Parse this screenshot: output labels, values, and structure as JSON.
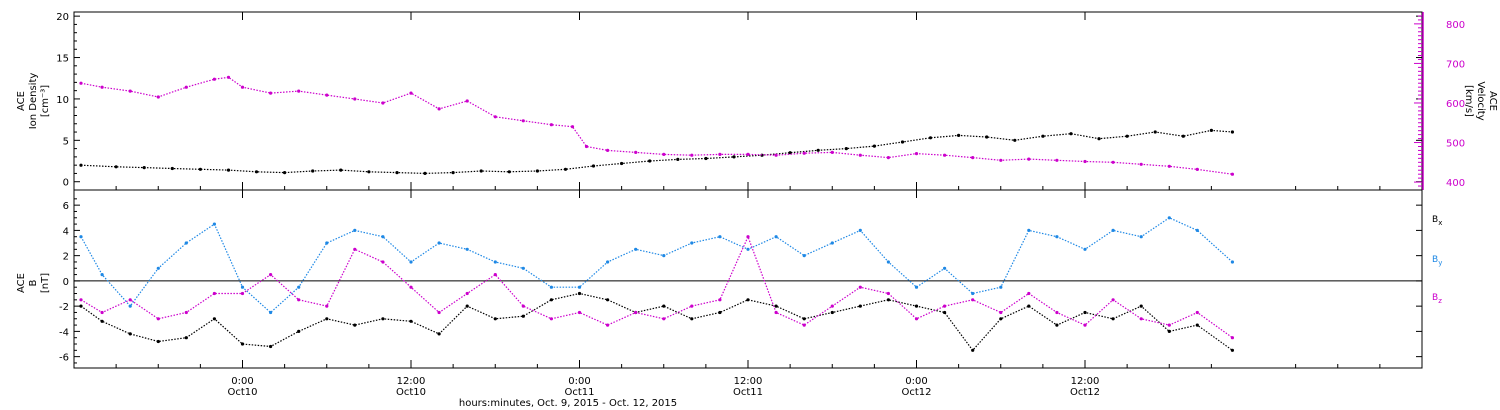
{
  "colors": {
    "axis": "#000000",
    "density": "#000000",
    "velocity": "#cc00cc",
    "bx": "#000000",
    "by": "#1e88e5",
    "bz": "#cc00cc"
  },
  "chart_data": [
    {
      "type": "scatter",
      "title": "",
      "xlabel": "hours:minutes, Oct. 9, 2015 - Oct. 12, 2015",
      "ylabel": [
        "ACE",
        "Ion Density",
        "[cm⁻³]"
      ],
      "y2label": [
        "ACE",
        "Velocity",
        "[km/s]"
      ],
      "xlim": [
        -12,
        84
      ],
      "ylim": [
        -1,
        20.5
      ],
      "y2lim": [
        380,
        830
      ],
      "yticks": [
        "0",
        "5",
        "10",
        "15",
        "20"
      ],
      "y2ticks": [
        "400",
        "500",
        "600",
        "700",
        "800"
      ],
      "grid": false,
      "series": [
        {
          "name": "",
          "axis": "left",
          "x": [
            -11.5,
            -9,
            -7,
            -5,
            -3,
            -1,
            1,
            3,
            5,
            7,
            9,
            11,
            13,
            15,
            17,
            19,
            21,
            23,
            25,
            27,
            29,
            31,
            33,
            35,
            37,
            39,
            41,
            43,
            45,
            47,
            49,
            51,
            53,
            55,
            57,
            59,
            61,
            63,
            65,
            67,
            69,
            70.5
          ],
          "y": [
            2.0,
            1.8,
            1.7,
            1.6,
            1.5,
            1.4,
            1.2,
            1.1,
            1.3,
            1.4,
            1.2,
            1.1,
            1.0,
            1.1,
            1.3,
            1.2,
            1.3,
            1.5,
            1.9,
            2.2,
            2.5,
            2.7,
            2.8,
            3.0,
            3.2,
            3.5,
            3.8,
            4.0,
            4.3,
            4.8,
            5.3,
            5.6,
            5.4,
            5.0,
            5.5,
            5.8,
            5.2,
            5.5,
            6.0,
            5.5,
            6.2,
            6.0
          ]
        },
        {
          "name": "",
          "axis": "right",
          "x": [
            -11.5,
            -10,
            -8,
            -6,
            -4,
            -2,
            -1,
            0,
            2,
            4,
            6,
            8,
            10,
            12,
            14,
            16,
            18,
            20,
            22,
            23.5,
            24.5,
            26,
            28,
            30,
            32,
            34,
            36,
            38,
            40,
            42,
            44,
            46,
            48,
            50,
            52,
            54,
            56,
            58,
            60,
            62,
            64,
            66,
            68,
            70.5
          ],
          "y": [
            650,
            640,
            630,
            615,
            640,
            660,
            665,
            640,
            625,
            630,
            620,
            610,
            600,
            625,
            585,
            605,
            565,
            555,
            545,
            540,
            490,
            480,
            475,
            470,
            468,
            470,
            470,
            468,
            473,
            475,
            468,
            462,
            472,
            468,
            462,
            455,
            458,
            455,
            452,
            450,
            445,
            440,
            432,
            420
          ]
        }
      ]
    },
    {
      "type": "scatter",
      "title": "",
      "xlabel": "hours:minutes, Oct. 9, 2015 - Oct. 12, 2015",
      "ylabel": [
        "ACE",
        "B",
        "[nT]"
      ],
      "xlim": [
        -12,
        84
      ],
      "ylim": [
        -6.9,
        7.2
      ],
      "yticks": [
        "-6",
        "-4",
        "-2",
        "0",
        "2",
        "4",
        "6"
      ],
      "xticks": [
        {
          "value": 0,
          "time": "0:00",
          "date": "Oct10"
        },
        {
          "value": 12,
          "time": "12:00",
          "date": "Oct10"
        },
        {
          "value": 24,
          "time": "0:00",
          "date": "Oct11"
        },
        {
          "value": 36,
          "time": "12:00",
          "date": "Oct11"
        },
        {
          "value": 48,
          "time": "0:00",
          "date": "Oct12"
        },
        {
          "value": 60,
          "time": "12:00",
          "date": "Oct12"
        }
      ],
      "zero_line": true,
      "legend": {
        "placement": "right",
        "entries": [
          {
            "base": "B",
            "sub": "x",
            "color": "#000000"
          },
          {
            "base": "B",
            "sub": "y",
            "color": "#1e88e5"
          },
          {
            "base": "B",
            "sub": "z",
            "color": "#cc00cc"
          }
        ]
      },
      "series": [
        {
          "name": "Bx",
          "x": [
            -11.5,
            -10,
            -8,
            -6,
            -4,
            -2,
            0,
            2,
            4,
            6,
            8,
            10,
            12,
            14,
            16,
            18,
            20,
            22,
            24,
            26,
            28,
            30,
            32,
            34,
            36,
            38,
            40,
            42,
            44,
            46,
            48,
            50,
            52,
            54,
            56,
            58,
            60,
            62,
            64,
            66,
            68,
            70.5
          ],
          "y": [
            -2.0,
            -3.2,
            -4.2,
            -4.8,
            -4.5,
            -3.0,
            -5.0,
            -5.2,
            -4.0,
            -3.0,
            -3.5,
            -3.0,
            -3.2,
            -4.2,
            -2.0,
            -3.0,
            -2.8,
            -1.5,
            -1.0,
            -1.5,
            -2.5,
            -2.0,
            -3.0,
            -2.5,
            -1.5,
            -2.0,
            -3.0,
            -2.5,
            -2.0,
            -1.5,
            -2.0,
            -2.5,
            -5.5,
            -3.0,
            -2.0,
            -3.5,
            -2.5,
            -3.0,
            -2.0,
            -4.0,
            -3.5,
            -5.5
          ]
        },
        {
          "name": "By",
          "x": [
            -11.5,
            -10,
            -8,
            -6,
            -4,
            -2,
            0,
            2,
            4,
            6,
            8,
            10,
            12,
            14,
            16,
            18,
            20,
            22,
            24,
            26,
            28,
            30,
            32,
            34,
            36,
            38,
            40,
            42,
            44,
            46,
            48,
            50,
            52,
            54,
            56,
            58,
            60,
            62,
            64,
            66,
            68,
            70.5
          ],
          "y": [
            3.5,
            0.5,
            -2.0,
            1.0,
            3.0,
            4.5,
            -0.5,
            -2.5,
            -0.5,
            3.0,
            4.0,
            3.5,
            1.5,
            3.0,
            2.5,
            1.5,
            1.0,
            -0.5,
            -0.5,
            1.5,
            2.5,
            2.0,
            3.0,
            3.5,
            2.5,
            3.5,
            2.0,
            3.0,
            4.0,
            1.5,
            -0.5,
            1.0,
            -1.0,
            -0.5,
            4.0,
            3.5,
            2.5,
            4.0,
            3.5,
            5.0,
            4.0,
            1.5
          ]
        },
        {
          "name": "Bz",
          "x": [
            -11.5,
            -10,
            -8,
            -6,
            -4,
            -2,
            0,
            2,
            4,
            6,
            8,
            10,
            12,
            14,
            16,
            18,
            20,
            22,
            24,
            26,
            28,
            30,
            32,
            34,
            36,
            38,
            40,
            42,
            44,
            46,
            48,
            50,
            52,
            54,
            56,
            58,
            60,
            62,
            64,
            66,
            68,
            70.5
          ],
          "y": [
            -1.5,
            -2.5,
            -1.5,
            -3.0,
            -2.5,
            -1.0,
            -1.0,
            0.5,
            -1.5,
            -2.0,
            2.5,
            1.5,
            -0.5,
            -2.5,
            -1.0,
            0.5,
            -2.0,
            -3.0,
            -2.5,
            -3.5,
            -2.5,
            -3.0,
            -2.0,
            -1.5,
            3.5,
            -2.5,
            -3.5,
            -2.0,
            -0.5,
            -1.0,
            -3.0,
            -2.0,
            -1.5,
            -2.5,
            -1.0,
            -2.5,
            -3.5,
            -1.5,
            -3.0,
            -3.5,
            -2.5,
            -4.5
          ]
        }
      ]
    }
  ]
}
